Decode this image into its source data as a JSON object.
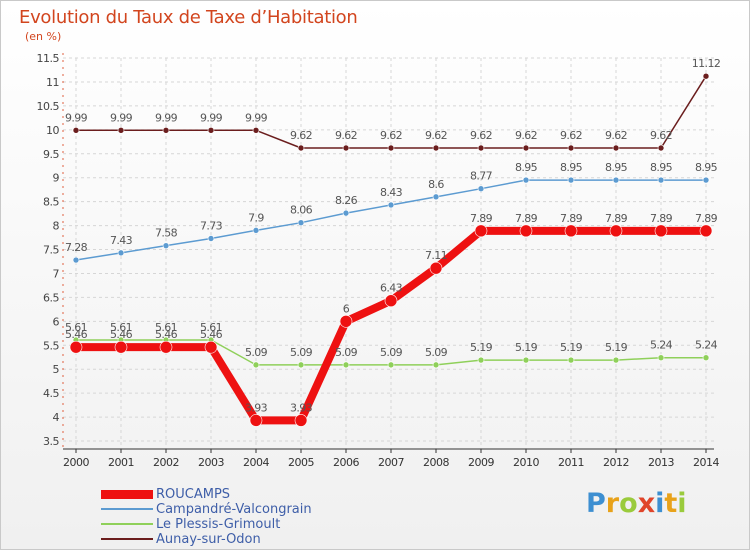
{
  "title": "Evolution du Taux de Taxe d’Habitation",
  "unit_label": "(en %)",
  "brand": {
    "letters": [
      "P",
      "r",
      "o",
      "x",
      "i",
      "t",
      "i"
    ],
    "colors": [
      "#3d8fd1",
      "#e8a21a",
      "#9acb3c",
      "#e0452a",
      "#3d8fd1",
      "#e8a21a",
      "#9acb3c"
    ]
  },
  "chart_data": {
    "type": "line",
    "title": "Evolution du Taux de Taxe d’Habitation",
    "ylabel": "(en %)",
    "xlabel": "",
    "ylim": [
      3.5,
      11.5
    ],
    "grid": true,
    "legend_position": "bottom-left",
    "x": [
      2000,
      2001,
      2002,
      2003,
      2004,
      2005,
      2006,
      2007,
      2008,
      2009,
      2010,
      2011,
      2012,
      2013,
      2014
    ],
    "yticks": [
      3.5,
      4,
      4.5,
      5,
      5.5,
      6,
      6.5,
      7,
      7.5,
      8,
      8.5,
      9,
      9.5,
      10,
      10.5,
      11,
      11.5
    ],
    "series": [
      {
        "name": "ROUCAMPS",
        "color": "#ee1111",
        "values": [
          5.46,
          5.46,
          5.46,
          5.46,
          3.93,
          3.93,
          6,
          6.43,
          7.11,
          7.89,
          7.89,
          7.89,
          7.89,
          7.89,
          7.89
        ]
      },
      {
        "name": "Campandré-Valcongrain",
        "color": "#5c9bd1",
        "values": [
          7.28,
          7.43,
          7.58,
          7.73,
          7.9,
          8.06,
          8.26,
          8.43,
          8.6,
          8.77,
          8.95,
          8.95,
          8.95,
          8.95,
          8.95
        ]
      },
      {
        "name": "Le Plessis-Grimoult",
        "color": "#8fd05a",
        "values": [
          5.61,
          5.61,
          5.61,
          5.61,
          5.09,
          5.09,
          5.09,
          5.09,
          5.09,
          5.19,
          5.19,
          5.19,
          5.19,
          5.24,
          5.24
        ]
      },
      {
        "name": "Aunay-sur-Odon",
        "color": "#6b1e1e",
        "values": [
          9.99,
          9.99,
          9.99,
          9.99,
          9.99,
          9.62,
          9.62,
          9.62,
          9.62,
          9.62,
          9.62,
          9.62,
          9.62,
          9.62,
          11.12
        ]
      }
    ]
  }
}
